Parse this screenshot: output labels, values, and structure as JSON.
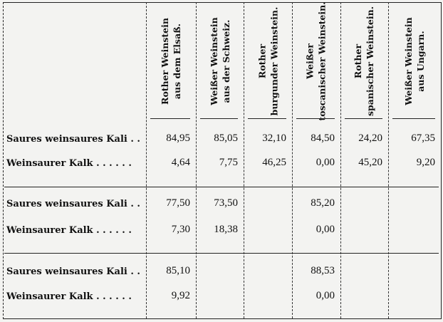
{
  "table": {
    "columns": [
      {
        "line1": "Rother Weinstein",
        "line2": "aus dem Elsaß."
      },
      {
        "line1": "Weißer Weinstein",
        "line2": "aus der Schweiz."
      },
      {
        "line1": "Rother",
        "line2": "burgunder Weinstein."
      },
      {
        "line1": "Weißer",
        "line2": "toscanischer Weinstein."
      },
      {
        "line1": "Rother",
        "line2": "spanischer Weinstein."
      },
      {
        "line1": "Weißer Weinstein",
        "line2": "aus Ungarn."
      }
    ],
    "rows": [
      {
        "label": "Saures weinsaures Kali . .",
        "values": [
          "84,95",
          "85,05",
          "32,10",
          "84,50",
          "24,20",
          "67,35"
        ]
      },
      {
        "label": "Weinsaurer Kalk . . . . . .",
        "values": [
          "4,64",
          "7,75",
          "46,25",
          "0,00",
          "45,20",
          "9,20"
        ]
      },
      {
        "label": "Saures weinsaures Kali . .",
        "values": [
          "77,50",
          "73,50",
          "",
          "85,20",
          "",
          ""
        ]
      },
      {
        "label": "Weinsaurer Kalk . . . . . .",
        "values": [
          "7,30",
          "18,38",
          "",
          "0,00",
          "",
          ""
        ]
      },
      {
        "label": "Saures weinsaures Kali . .",
        "values": [
          "85,10",
          "",
          "",
          "88,53",
          "",
          ""
        ]
      },
      {
        "label": "Weinsaurer Kalk . . . . . .",
        "values": [
          "9,92",
          "",
          "",
          "0,00",
          "",
          ""
        ]
      }
    ]
  }
}
